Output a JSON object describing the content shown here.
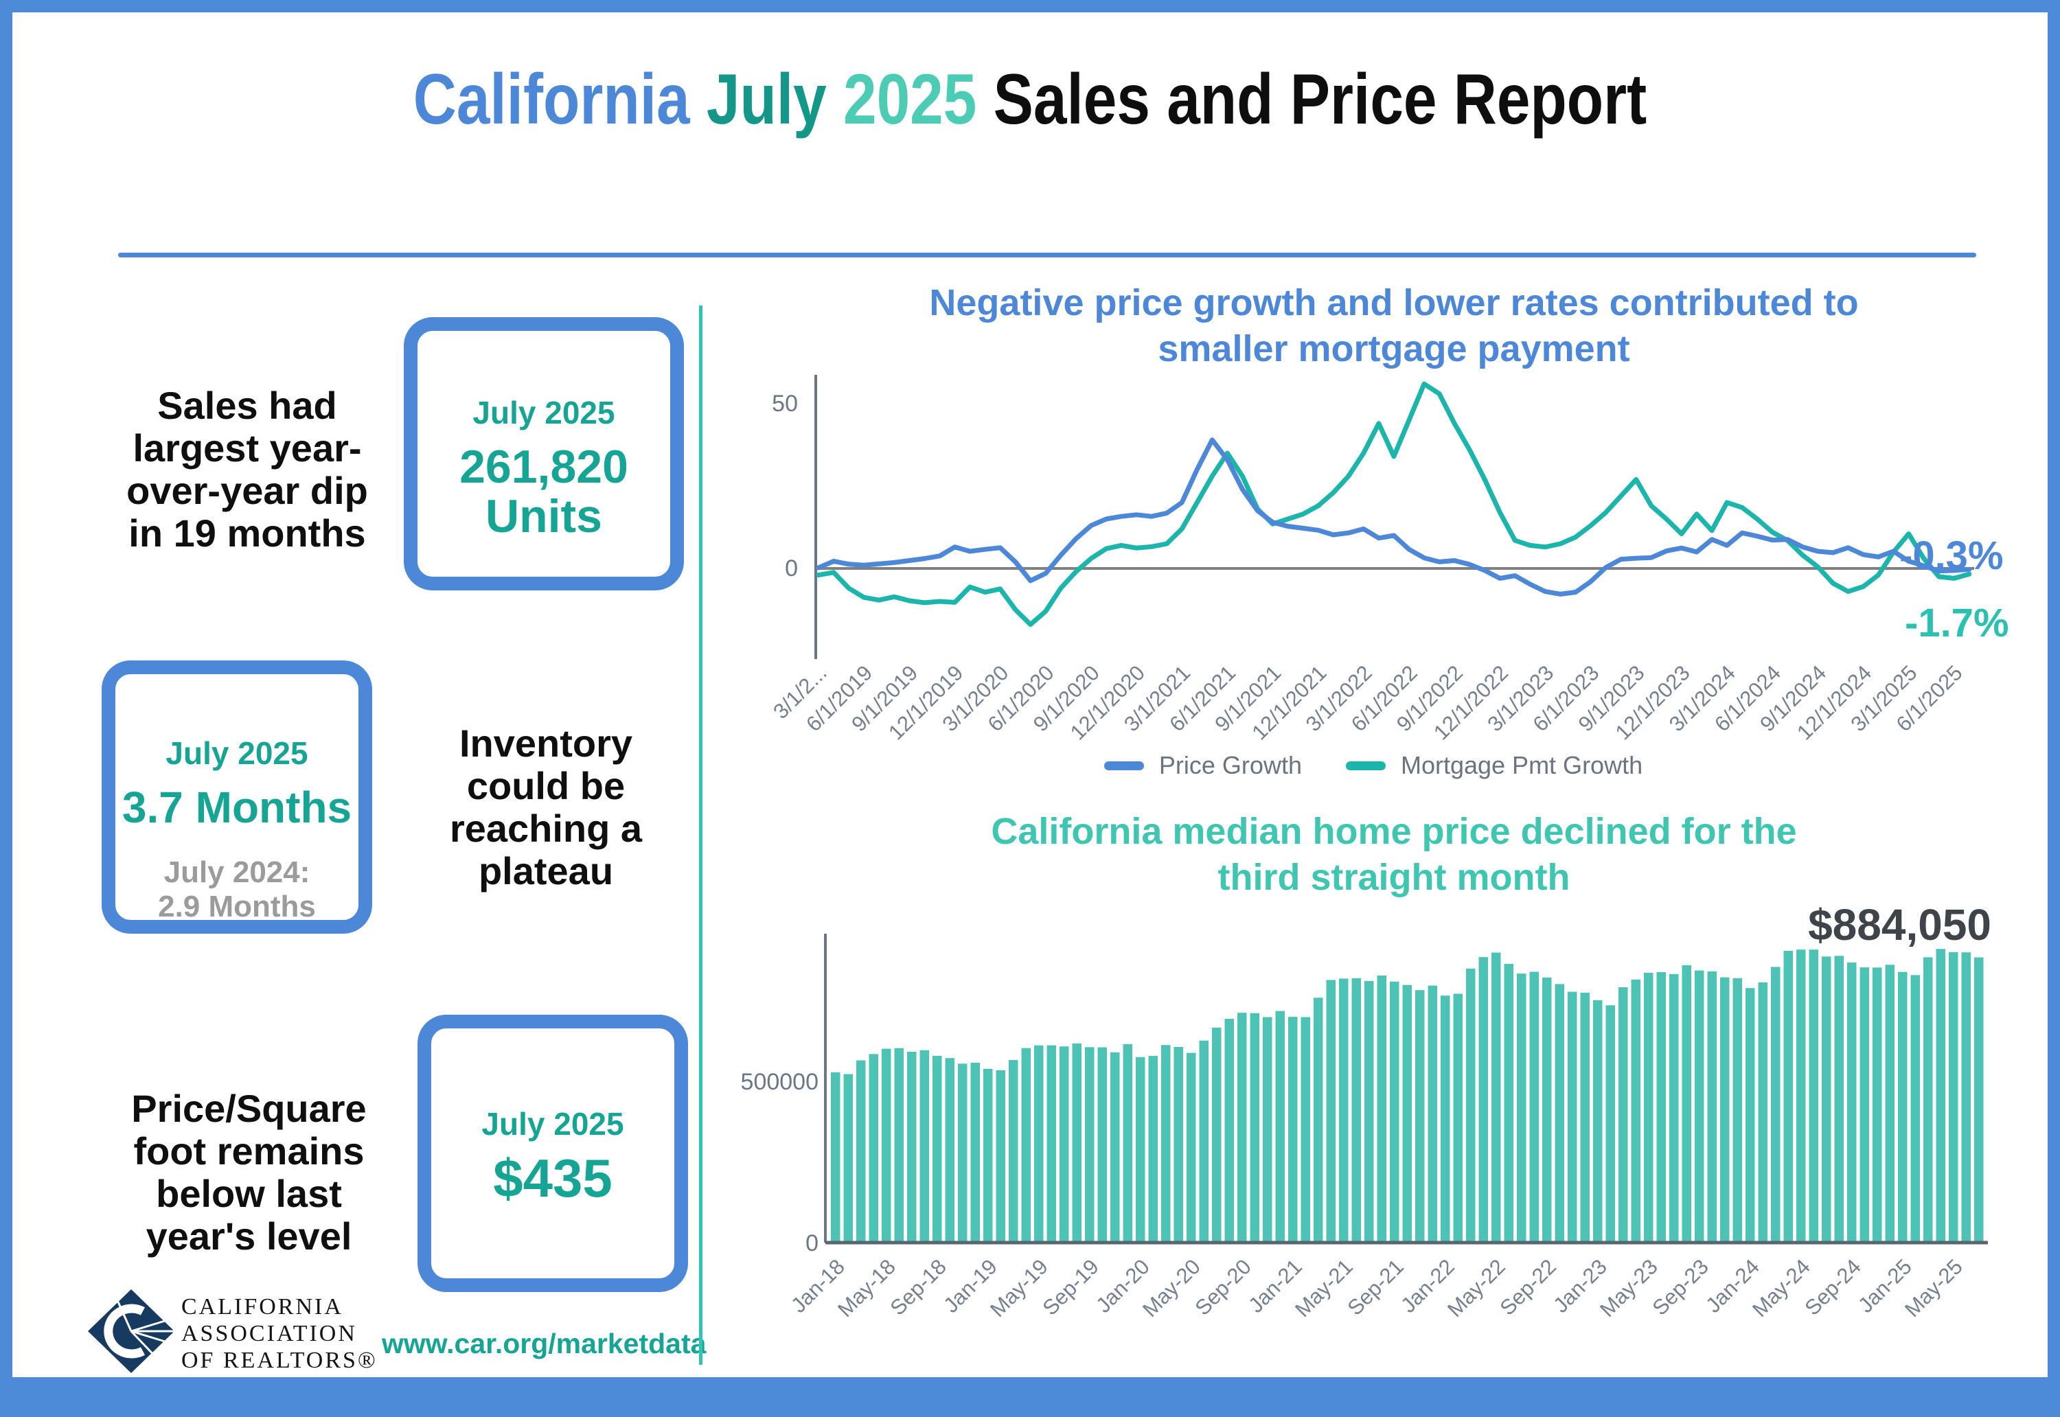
{
  "page": {
    "title_parts": {
      "part1": "California",
      "part2": "July",
      "part3": "2025",
      "part4": "Sales and Price Report"
    },
    "website": "www.car.org/marketdata",
    "logo_lines": {
      "line1": "CALIFORNIA",
      "line2": "ASSOCIATION",
      "line3": "OF REALTORS®"
    }
  },
  "colors": {
    "accent_blue": "#4d88d8",
    "accent_teal_dark": "#129788",
    "accent_teal_light": "#4ccbb5",
    "stat_teal": "#16a595",
    "bar_teal": "#4cc3b4",
    "line_blue": "#4d88d8",
    "line_teal": "#1cb5ac",
    "divider_teal": "#2ec4b6",
    "sub_gray": "#9b9b9b",
    "frame_blue": "#4d8ad8"
  },
  "stats": [
    {
      "headline_lines": [
        "Sales had",
        "largest year-",
        "over-year dip",
        "in 19 months"
      ],
      "box_label": "July 2025",
      "box_value_line1": "261,820",
      "box_value_line2": "Units"
    },
    {
      "box_label": "July 2025",
      "box_value": "3.7 Months",
      "box_sub_line1": "July 2024:",
      "box_sub_line2": "2.9 Months",
      "headline_lines": [
        "Inventory",
        "could be",
        "reaching a",
        "plateau"
      ]
    },
    {
      "headline_lines": [
        "Price/Square",
        "foot remains",
        "below last",
        "year's level"
      ],
      "box_label": "July 2025",
      "box_value": "$435"
    }
  ],
  "chart_data": [
    {
      "type": "line",
      "title": "Negative price growth and lower rates contributed to smaller mortgage payment",
      "title_lines": [
        "Negative price growth and lower rates contributed to",
        "smaller mortgage payment"
      ],
      "x_frequency": "monthly",
      "x_start": "3/1/2019",
      "x_end": "7/1/2025",
      "x_tick_labels": [
        "3/1/2...",
        "6/1/2019",
        "9/1/2019",
        "12/1/2019",
        "3/1/2020",
        "6/1/2020",
        "9/1/2020",
        "12/1/2020",
        "3/1/2021",
        "6/1/2021",
        "9/1/2021",
        "12/1/2021",
        "3/1/2022",
        "6/1/2022",
        "9/1/2022",
        "12/1/2022",
        "3/1/2023",
        "6/1/2023",
        "9/1/2023",
        "12/1/2023",
        "3/1/2024",
        "6/1/2024",
        "9/1/2024",
        "12/1/2024",
        "3/1/2025",
        "6/1/2025"
      ],
      "x_tick_every_n_months": 3,
      "yticks": [
        0,
        50
      ],
      "ylim": [
        -27,
        60
      ],
      "grid": false,
      "legend_position": "bottom",
      "series": [
        {
          "name": "Price Growth",
          "color": "#4d88d8",
          "values": [
            0.2,
            2.2,
            1.3,
            1.0,
            1.4,
            1.8,
            2.4,
            3.0,
            3.8,
            6.5,
            5.2,
            5.8,
            6.3,
            2.0,
            -3.7,
            -1.5,
            4.0,
            9.0,
            13.0,
            15.0,
            15.8,
            16.3,
            15.8,
            16.8,
            20.0,
            30.0,
            39.0,
            33.0,
            24.0,
            17.5,
            14.0,
            12.8,
            12.2,
            11.6,
            10.2,
            10.8,
            12.0,
            9.2,
            10.0,
            5.8,
            3.2,
            2.0,
            2.4,
            1.2,
            -0.6,
            -3.0,
            -2.2,
            -4.8,
            -7.0,
            -7.8,
            -7.2,
            -4.0,
            0.3,
            2.8,
            3.1,
            3.3,
            5.3,
            6.2,
            5.0,
            8.8,
            7.0,
            10.8,
            9.8,
            8.6,
            8.8,
            6.5,
            5.2,
            4.8,
            6.3,
            4.2,
            3.5,
            5.2,
            2.2,
            0.8,
            -0.8,
            -0.6,
            -0.3
          ]
        },
        {
          "name": "Mortgage Pmt Growth",
          "color": "#1cb5ac",
          "values": [
            -2.0,
            -1.2,
            -6.0,
            -8.8,
            -9.6,
            -8.6,
            -9.8,
            -10.4,
            -10.0,
            -10.3,
            -5.6,
            -7.2,
            -6.2,
            -12.5,
            -17.0,
            -13.0,
            -6.0,
            -1.0,
            3.0,
            6.0,
            7.0,
            6.2,
            6.6,
            7.5,
            12.0,
            20.0,
            28.0,
            35.0,
            28.0,
            18.0,
            13.5,
            15.0,
            16.5,
            19.0,
            23.0,
            28.0,
            35.0,
            44.0,
            34.0,
            45.0,
            56.0,
            53.0,
            44.0,
            36.0,
            27.0,
            17.0,
            8.5,
            7.0,
            6.5,
            7.5,
            9.5,
            13.0,
            17.0,
            22.0,
            27.0,
            19.0,
            15.0,
            10.5,
            16.5,
            11.5,
            20.0,
            18.5,
            15.0,
            11.0,
            8.5,
            4.0,
            0.5,
            -4.5,
            -7.0,
            -5.5,
            -2.0,
            5.0,
            10.5,
            3.0,
            -2.5,
            -3.0,
            -1.7
          ]
        }
      ],
      "annotations": [
        {
          "text": "-0.3%",
          "series": "Price Growth",
          "color": "#4d88d8"
        },
        {
          "text": "-1.7%",
          "series": "Mortgage Pmt Growth",
          "color": "#2cc0b0"
        }
      ]
    },
    {
      "type": "bar",
      "title": "California median home price declined for the third straight month",
      "title_lines": [
        "California median home price declined for the",
        "third straight month"
      ],
      "x_frequency": "monthly",
      "x_start": "Jan-18",
      "x_end": "Jul-25",
      "x_tick_labels": [
        "Jan-18",
        "May-18",
        "Sep-18",
        "Jan-19",
        "May-19",
        "Sep-19",
        "Jan-20",
        "May-20",
        "Sep-20",
        "Jan-21",
        "May-21",
        "Sep-21",
        "Jan-22",
        "May-22",
        "Sep-22",
        "Jan-23",
        "May-23",
        "Sep-23",
        "Jan-24",
        "May-24",
        "Sep-24",
        "Jan-25",
        "May-25"
      ],
      "x_tick_every_n_months": 4,
      "yticks": [
        0,
        500000
      ],
      "ylim": [
        0,
        960000
      ],
      "grid": false,
      "bar_color": "#4cc3b4",
      "values": [
        527800,
        522440,
        564830,
        584460,
        600860,
        602760,
        591460,
        596410,
        578850,
        572000,
        554760,
        557600,
        538690,
        534140,
        565880,
        602920,
        611190,
        611420,
        607990,
        617410,
        605680,
        605280,
        589770,
        615090,
        575160,
        578530,
        612440,
        606410,
        588070,
        626170,
        666320,
        693680,
        712430,
        711300,
        699000,
        717930,
        699890,
        699000,
        758990,
        813980,
        818260,
        819630,
        811170,
        827940,
        808890,
        798440,
        782480,
        796570,
        765580,
        771270,
        849080,
        884890,
        898980,
        863790,
        833910,
        839460,
        821680,
        801190,
        777500,
        774580,
        751330,
        735480,
        791490,
        815340,
        836110,
        838260,
        832340,
        859800,
        843340,
        840360,
        822200,
        819740,
        788940,
        806480,
        854490,
        904210,
        908040,
        908000,
        886560,
        888740,
        868150,
        852880,
        852600,
        861020,
        838850,
        829060,
        884350,
        910160,
        900170,
        899560,
        884050
      ],
      "annotation": {
        "text": "$884,050",
        "applies_to": "Jul-25"
      }
    }
  ]
}
